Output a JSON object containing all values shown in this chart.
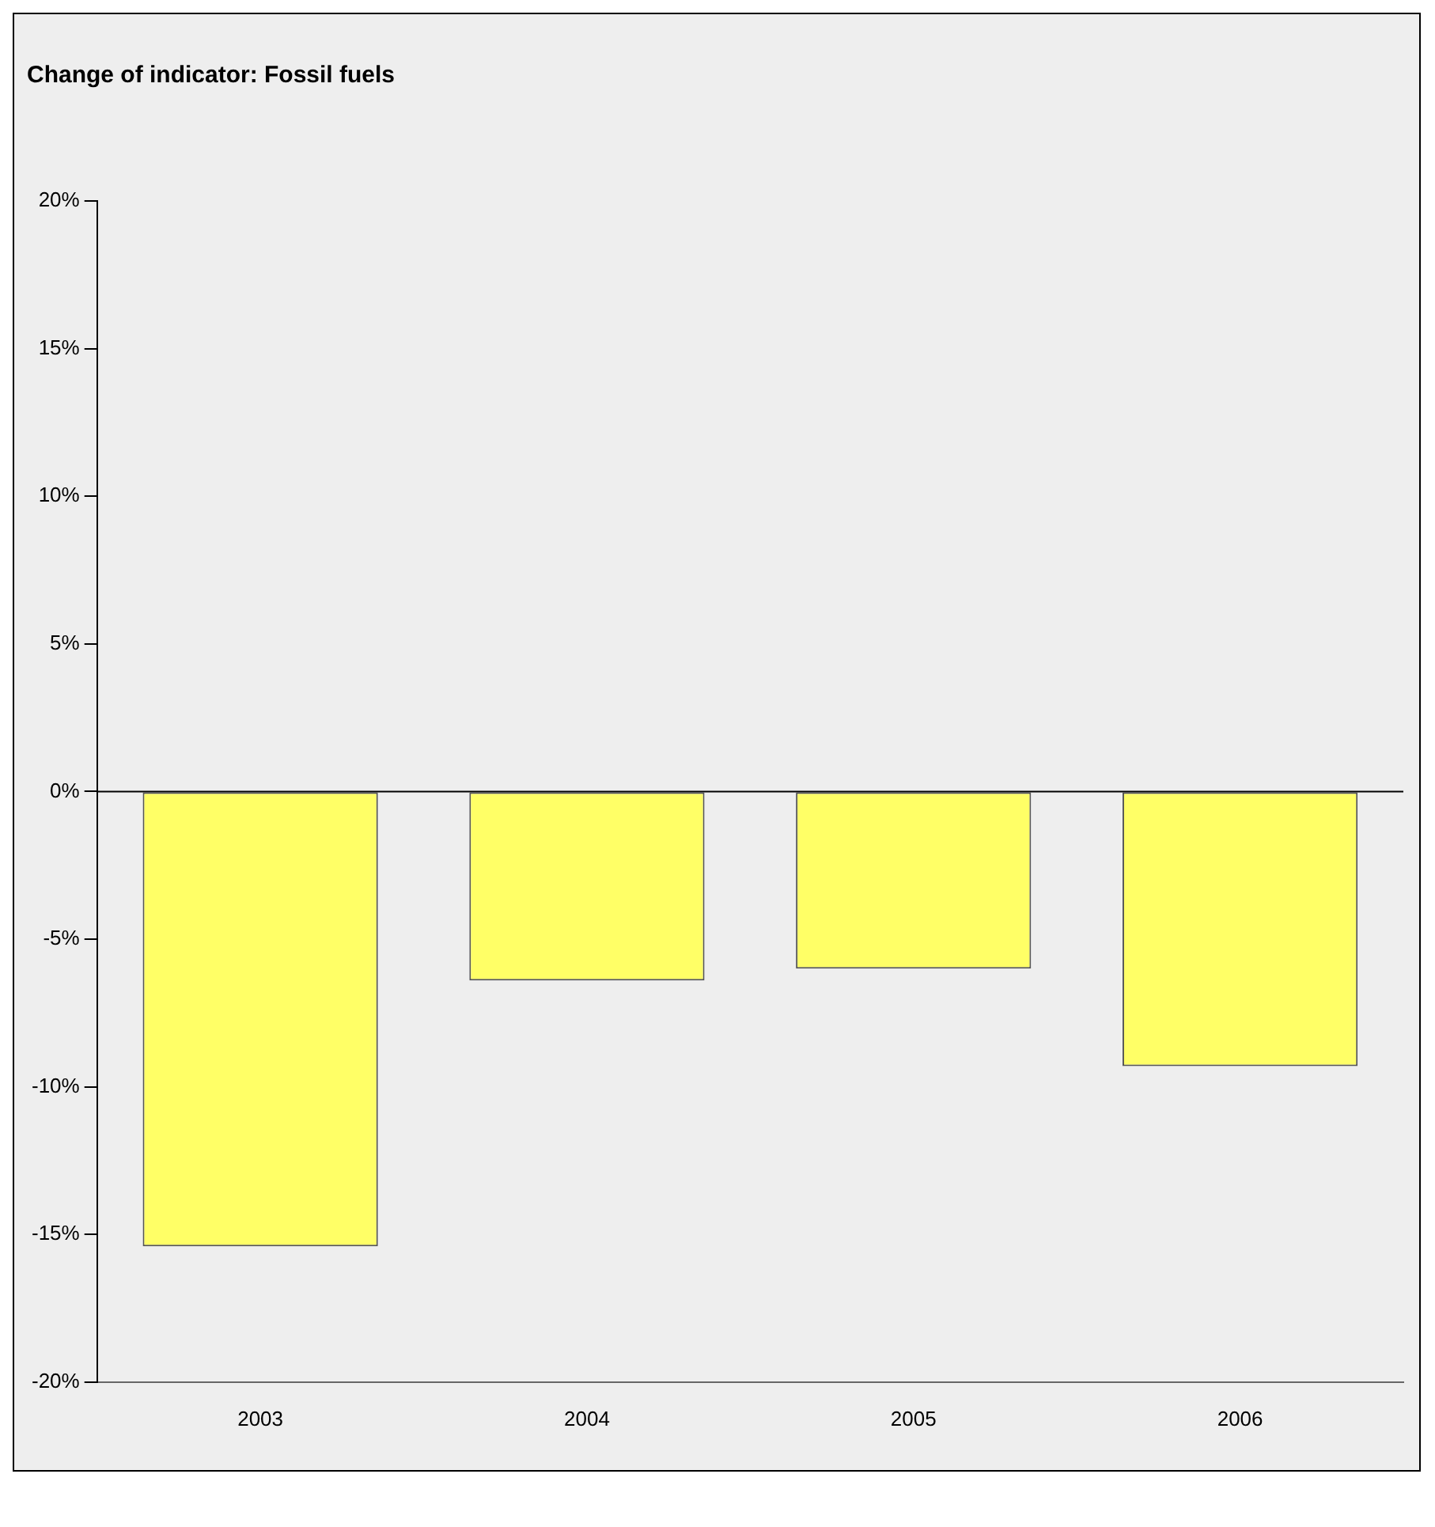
{
  "chart_data": {
    "type": "bar",
    "title": "Change of indicator: Fossil fuels",
    "categories": [
      "2003",
      "2004",
      "2005",
      "2006"
    ],
    "values": [
      -15.4,
      -6.4,
      -6.0,
      -9.3
    ],
    "color": "#ffff66",
    "ylim": [
      -20,
      20
    ],
    "yticks": [
      {
        "value": -20,
        "label": "-20%"
      },
      {
        "value": -15,
        "label": "-15%"
      },
      {
        "value": -10,
        "label": "-10%"
      },
      {
        "value": -5,
        "label": "-5%"
      },
      {
        "value": 0,
        "label": "0%"
      },
      {
        "value": 5,
        "label": "5%"
      },
      {
        "value": 10,
        "label": "10%"
      },
      {
        "value": 15,
        "label": "15%"
      },
      {
        "value": 20,
        "label": "20%"
      }
    ],
    "ref_lines": [
      {
        "axis": "y",
        "value": 0,
        "color": "#000000"
      }
    ],
    "grid": false,
    "legend": false
  }
}
